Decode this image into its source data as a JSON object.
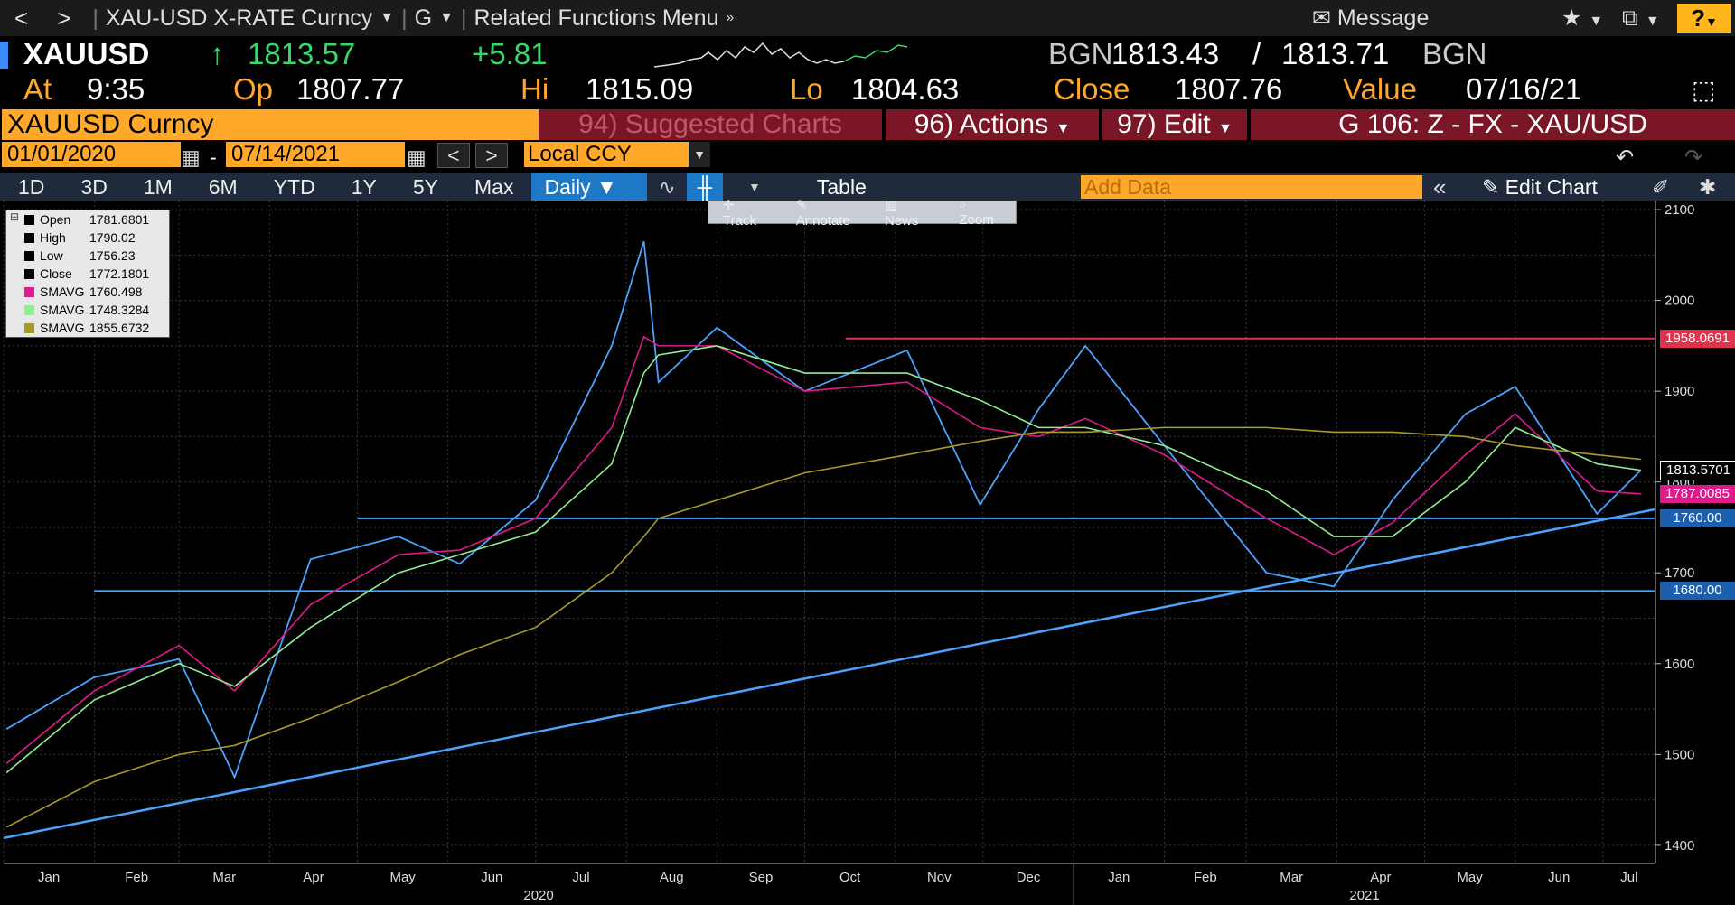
{
  "titlebar": {
    "back": "<",
    "forward": ">",
    "security": "XAU-USD X-RATE Curncy",
    "launch": "G",
    "menu": "Related Functions Menu",
    "message": "Message",
    "help": "?"
  },
  "quote": {
    "ticker": "XAUUSD",
    "arrow": "↑",
    "last": "1813.57",
    "change": "+5.81",
    "src1": "BGN",
    "bid": "1813.43",
    "slash": "/",
    "ask": "1813.71",
    "src2": "BGN",
    "at_label": "At",
    "time": "9:35",
    "op_label": "Op",
    "open": "1807.77",
    "hi_label": "Hi",
    "high": "1815.09",
    "lo_label": "Lo",
    "low": "1804.63",
    "close_label": "Close",
    "close": "1807.76",
    "value_label": "Value",
    "value_date": "07/16/21"
  },
  "menubar": {
    "security": "XAUUSD Curncy",
    "suggested": "94) Suggested Charts",
    "actions": "96) Actions",
    "edit": "97) Edit",
    "chart_id": "G 106: Z - FX - XAU/USD"
  },
  "controls": {
    "start": "01/01/2020",
    "dash": "-",
    "end": "07/14/2021",
    "currency": "Local CCY"
  },
  "toolbar": {
    "periods": [
      "1D",
      "3D",
      "1M",
      "6M",
      "YTD",
      "1Y",
      "5Y",
      "Max"
    ],
    "frequency": "Daily",
    "table": "Table",
    "add_data": "Add Data",
    "edit_chart": "Edit Chart"
  },
  "floatbar": {
    "track": "Track",
    "annotate": "Annotate",
    "news": "News",
    "zoom": "Zoom"
  },
  "legend": [
    {
      "name": "Open",
      "value": "1781.6801",
      "color": "#000000"
    },
    {
      "name": "High",
      "value": "1790.02",
      "color": "#000000"
    },
    {
      "name": "Low",
      "value": "1756.23",
      "color": "#000000"
    },
    {
      "name": "Close",
      "value": "1772.1801",
      "color": "#000000"
    },
    {
      "name": "SMAVG",
      "value": "1760.498",
      "color": "#e0198c"
    },
    {
      "name": "SMAVG",
      "value": "1748.3284",
      "color": "#90ee90"
    },
    {
      "name": "SMAVG",
      "value": "1855.6732",
      "color": "#a89a2a"
    }
  ],
  "chart_data": {
    "type": "line",
    "ylim": [
      1380,
      2110
    ],
    "yticks": [
      1400,
      1500,
      1600,
      1700,
      1800,
      1900,
      2000,
      2100
    ],
    "months": [
      "Jan",
      "Feb",
      "Mar",
      "Apr",
      "May",
      "Jun",
      "Jul",
      "Aug",
      "Sep",
      "Oct",
      "Nov",
      "Dec",
      "Jan",
      "Feb",
      "Mar",
      "Apr",
      "May",
      "Jun",
      "Jul"
    ],
    "years": [
      {
        "label": "2020"
      },
      {
        "label": "2021"
      }
    ],
    "x": [
      "2020-01-02",
      "2020-02-01",
      "2020-03-01",
      "2020-03-20",
      "2020-04-15",
      "2020-05-15",
      "2020-06-05",
      "2020-07-01",
      "2020-07-27",
      "2020-08-07",
      "2020-08-12",
      "2020-09-01",
      "2020-10-01",
      "2020-11-05",
      "2020-11-30",
      "2020-12-20",
      "2021-01-05",
      "2021-02-01",
      "2021-03-08",
      "2021-03-31",
      "2021-04-20",
      "2021-05-15",
      "2021-06-01",
      "2021-06-29",
      "2021-07-14"
    ],
    "series": [
      {
        "name": "Close",
        "color": "#4aa3ff",
        "values": [
          1528,
          1585,
          1605,
          1475,
          1715,
          1740,
          1710,
          1780,
          1950,
          2065,
          1910,
          1970,
          1900,
          1945,
          1775,
          1880,
          1950,
          1840,
          1700,
          1685,
          1780,
          1875,
          1905,
          1765,
          1813
        ]
      },
      {
        "name": "SMAVG",
        "color": "#e0198c",
        "values": [
          1490,
          1570,
          1620,
          1570,
          1665,
          1720,
          1725,
          1760,
          1860,
          1960,
          1950,
          1950,
          1900,
          1910,
          1860,
          1850,
          1870,
          1830,
          1760,
          1720,
          1755,
          1830,
          1875,
          1790,
          1787
        ]
      },
      {
        "name": "SMAVG",
        "color": "#90ee90",
        "values": [
          1480,
          1560,
          1600,
          1575,
          1640,
          1700,
          1720,
          1745,
          1820,
          1920,
          1940,
          1950,
          1920,
          1920,
          1890,
          1860,
          1860,
          1840,
          1790,
          1740,
          1740,
          1800,
          1860,
          1820,
          1813
        ]
      },
      {
        "name": "SMAVG",
        "color": "#a89a2a",
        "values": [
          1420,
          1470,
          1500,
          1510,
          1540,
          1580,
          1610,
          1640,
          1700,
          1740,
          1760,
          1780,
          1810,
          1830,
          1845,
          1855,
          1855,
          1860,
          1860,
          1855,
          1855,
          1850,
          1840,
          1830,
          1825
        ]
      }
    ],
    "levels": [
      {
        "value": 1958.0691,
        "label": "1958.0691",
        "color": "#e0344d",
        "from": "2020-10-15"
      },
      {
        "value": 1760.0,
        "label": "1760.00",
        "color": "#4aa3ff",
        "from": "2020-05-01"
      },
      {
        "value": 1680.0,
        "label": "1680.00",
        "color": "#4aa3ff",
        "from": "2020-02-01"
      }
    ],
    "trendline": {
      "from": {
        "date": "2020-01-01",
        "value": 1408
      },
      "to": {
        "date": "2021-07-19",
        "value": 1770
      },
      "color": "#4aa3ff"
    },
    "axis_tags": [
      {
        "value": 1813.5701,
        "label": "1813.5701",
        "bg": "#000000",
        "border": "#ffffff"
      },
      {
        "value": 1787.0085,
        "label": "1787.0085",
        "bg": "#e0198c"
      },
      {
        "value": 1760.0,
        "label": "1760.00",
        "bg": "#1b5fae"
      },
      {
        "value": 1680.0,
        "label": "1680.00",
        "bg": "#1b5fae"
      },
      {
        "value": 1958.0691,
        "label": "1958.0691",
        "bg": "#e0344d"
      }
    ]
  }
}
